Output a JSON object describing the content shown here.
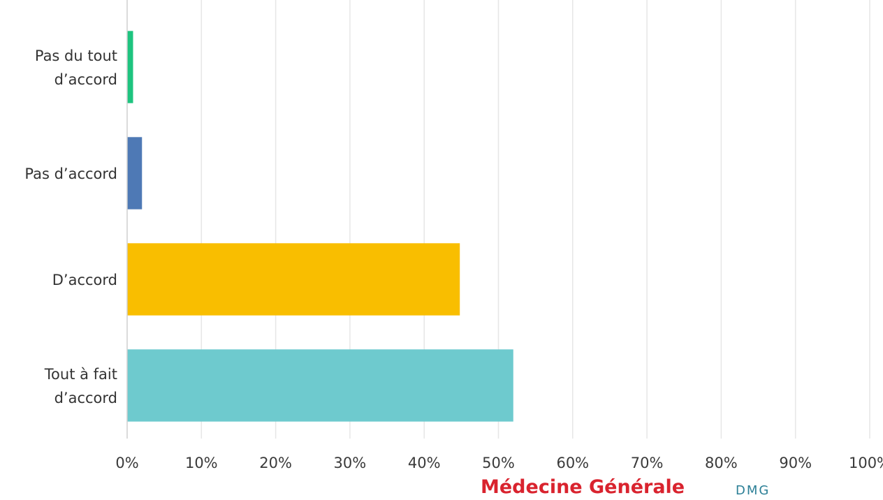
{
  "chart_data": {
    "type": "bar",
    "orientation": "horizontal",
    "categories": [
      [
        "Pas du tout",
        "d’accord"
      ],
      [
        "Pas d’accord"
      ],
      [
        "D’accord"
      ],
      [
        "Tout à fait",
        "d’accord"
      ]
    ],
    "values": [
      0.8,
      2.0,
      44.8,
      52.0
    ],
    "colors": [
      "#1ec47f",
      "#4e79b5",
      "#f9be00",
      "#6ecace"
    ],
    "xlim": [
      0,
      100
    ],
    "xticks": [
      "0%",
      "10%",
      "20%",
      "30%",
      "40%",
      "50%",
      "60%",
      "70%",
      "80%",
      "90%",
      "100%"
    ],
    "grid": true,
    "title": "",
    "xlabel": "",
    "ylabel": ""
  },
  "footer": {
    "text": "Médecine Générale",
    "abbr": "DMG"
  }
}
